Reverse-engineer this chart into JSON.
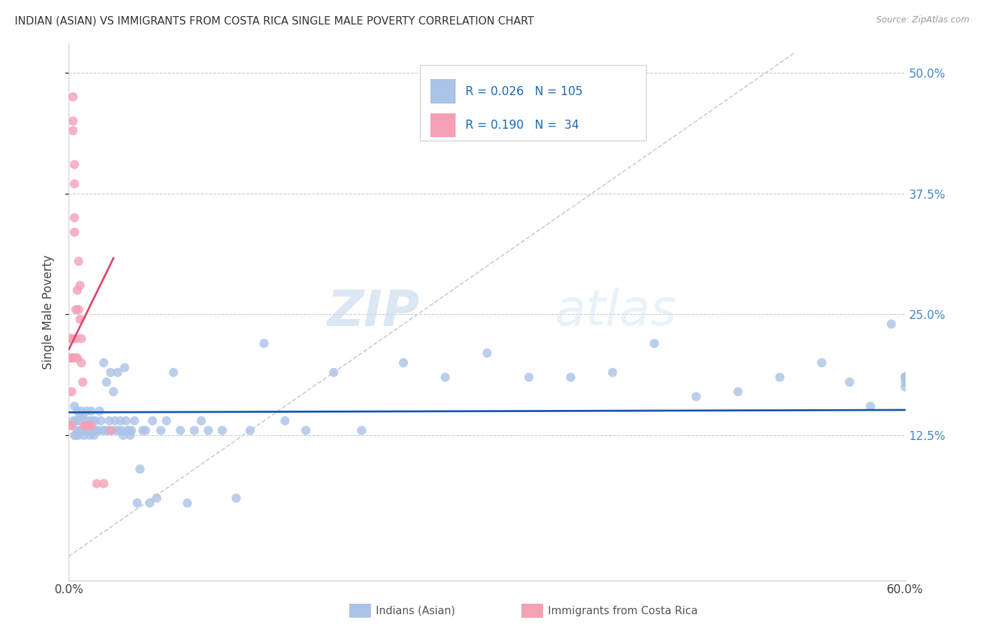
{
  "title": "INDIAN (ASIAN) VS IMMIGRANTS FROM COSTA RICA SINGLE MALE POVERTY CORRELATION CHART",
  "source": "Source: ZipAtlas.com",
  "ylabel": "Single Male Poverty",
  "xlim": [
    0.0,
    0.6
  ],
  "ylim": [
    -0.025,
    0.53
  ],
  "r_blue": 0.026,
  "n_blue": 105,
  "r_pink": 0.19,
  "n_pink": 34,
  "blue_color": "#aac4e8",
  "pink_color": "#f5a0b5",
  "blue_line_color": "#1155aa",
  "pink_line_color": "#dd4466",
  "diagonal_color": "#cccccc",
  "watermark_zip": "ZIP",
  "watermark_atlas": "atlas",
  "legend_label_blue": "Indians (Asian)",
  "legend_label_pink": "Immigrants from Costa Rica",
  "blue_x": [
    0.003,
    0.004,
    0.004,
    0.005,
    0.005,
    0.006,
    0.006,
    0.007,
    0.007,
    0.008,
    0.008,
    0.009,
    0.009,
    0.01,
    0.01,
    0.011,
    0.012,
    0.013,
    0.013,
    0.014,
    0.015,
    0.015,
    0.016,
    0.017,
    0.018,
    0.018,
    0.019,
    0.02,
    0.021,
    0.022,
    0.023,
    0.024,
    0.025,
    0.026,
    0.027,
    0.028,
    0.029,
    0.03,
    0.031,
    0.032,
    0.033,
    0.034,
    0.035,
    0.036,
    0.037,
    0.038,
    0.039,
    0.04,
    0.041,
    0.042,
    0.043,
    0.044,
    0.045,
    0.047,
    0.049,
    0.051,
    0.053,
    0.055,
    0.058,
    0.06,
    0.063,
    0.066,
    0.07,
    0.075,
    0.08,
    0.085,
    0.09,
    0.095,
    0.1,
    0.11,
    0.12,
    0.13,
    0.14,
    0.155,
    0.17,
    0.19,
    0.21,
    0.24,
    0.27,
    0.3,
    0.33,
    0.36,
    0.39,
    0.42,
    0.45,
    0.48,
    0.51,
    0.54,
    0.56,
    0.575,
    0.59,
    0.6,
    0.6,
    0.6,
    0.6,
    0.6,
    0.6,
    0.6,
    0.6,
    0.6,
    0.6,
    0.6,
    0.6,
    0.6,
    0.6
  ],
  "blue_y": [
    0.14,
    0.155,
    0.125,
    0.14,
    0.125,
    0.15,
    0.13,
    0.14,
    0.125,
    0.145,
    0.13,
    0.15,
    0.13,
    0.145,
    0.13,
    0.125,
    0.14,
    0.15,
    0.13,
    0.13,
    0.14,
    0.125,
    0.15,
    0.14,
    0.13,
    0.125,
    0.14,
    0.13,
    0.13,
    0.15,
    0.14,
    0.13,
    0.2,
    0.13,
    0.18,
    0.13,
    0.14,
    0.19,
    0.13,
    0.17,
    0.14,
    0.13,
    0.19,
    0.13,
    0.14,
    0.13,
    0.125,
    0.195,
    0.14,
    0.13,
    0.13,
    0.125,
    0.13,
    0.14,
    0.055,
    0.09,
    0.13,
    0.13,
    0.055,
    0.14,
    0.06,
    0.13,
    0.14,
    0.19,
    0.13,
    0.055,
    0.13,
    0.14,
    0.13,
    0.13,
    0.06,
    0.13,
    0.22,
    0.14,
    0.13,
    0.19,
    0.13,
    0.2,
    0.185,
    0.21,
    0.185,
    0.185,
    0.19,
    0.22,
    0.165,
    0.17,
    0.185,
    0.2,
    0.18,
    0.155,
    0.24,
    0.18,
    0.175,
    0.185,
    0.185,
    0.185,
    0.185,
    0.185,
    0.185,
    0.185,
    0.185,
    0.185,
    0.185,
    0.185,
    0.185
  ],
  "pink_x": [
    0.001,
    0.001,
    0.001,
    0.002,
    0.002,
    0.002,
    0.003,
    0.003,
    0.003,
    0.003,
    0.003,
    0.004,
    0.004,
    0.004,
    0.004,
    0.005,
    0.005,
    0.005,
    0.006,
    0.006,
    0.007,
    0.007,
    0.008,
    0.008,
    0.009,
    0.009,
    0.01,
    0.011,
    0.012,
    0.014,
    0.016,
    0.02,
    0.025,
    0.03
  ],
  "pink_y": [
    0.135,
    0.205,
    0.225,
    0.135,
    0.205,
    0.17,
    0.475,
    0.44,
    0.45,
    0.205,
    0.225,
    0.385,
    0.35,
    0.335,
    0.405,
    0.205,
    0.225,
    0.255,
    0.205,
    0.275,
    0.255,
    0.305,
    0.245,
    0.28,
    0.2,
    0.225,
    0.18,
    0.135,
    0.135,
    0.135,
    0.135,
    0.075,
    0.075,
    0.13
  ],
  "ytick_vals": [
    0.125,
    0.25,
    0.375,
    0.5
  ],
  "ytick_labels": [
    "12.5%",
    "25.0%",
    "37.5%",
    "50.0%"
  ],
  "xtick_vals": [
    0.0,
    0.6
  ],
  "xtick_labels": [
    "0.0%",
    "60.0%"
  ]
}
